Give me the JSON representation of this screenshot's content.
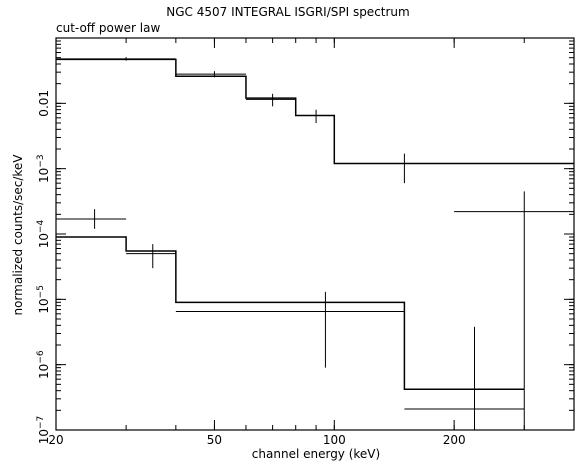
{
  "chart_data": {
    "type": "line",
    "title": "NGC 4507 INTEGRAL ISGRI/SPI spectrum",
    "subtitle": "cut-off power law",
    "xlabel": "channel energy (keV)",
    "ylabel": "normalized counts/sec/keV",
    "x_scale": "log",
    "y_scale": "log",
    "xlim": [
      20,
      400
    ],
    "ylim": [
      1e-07,
      0.1
    ],
    "x_ticks": [
      {
        "value": 20,
        "label": "20"
      },
      {
        "value": 50,
        "label": "50"
      },
      {
        "value": 100,
        "label": "100"
      },
      {
        "value": 200,
        "label": "200"
      }
    ],
    "y_ticks": [
      {
        "value": 1e-07,
        "mantissa": "10",
        "exp": "−7"
      },
      {
        "value": 1e-06,
        "mantissa": "10",
        "exp": "−6"
      },
      {
        "value": 1e-05,
        "mantissa": "10",
        "exp": "−5"
      },
      {
        "value": 0.0001,
        "mantissa": "10",
        "exp": "−4"
      },
      {
        "value": 0.001,
        "mantissa": "10",
        "exp": "−3"
      },
      {
        "value": 0.01,
        "label": "0.01"
      }
    ],
    "series": [
      {
        "model": {
          "bins": [
            [
              20,
              40
            ],
            [
              40,
              60
            ],
            [
              60,
              80
            ],
            [
              80,
              100
            ],
            [
              100,
              200
            ],
            [
              200,
              400
            ]
          ],
          "values": [
            0.047,
            0.026,
            0.012,
            0.0065,
            0.0012,
            0.0012
          ]
        },
        "data": [
          {
            "x": 30,
            "xerr": [
              20,
              40
            ],
            "y": 0.048,
            "yerr": [
              0.045,
              0.051
            ]
          },
          {
            "x": 50,
            "xerr": [
              40,
              60
            ],
            "y": 0.028,
            "yerr": [
              0.025,
              0.031
            ]
          },
          {
            "x": 70,
            "xerr": [
              60,
              80
            ],
            "y": 0.0115,
            "yerr": [
              0.009,
              0.014
            ]
          },
          {
            "x": 90,
            "xerr": [
              80,
              100
            ],
            "y": 0.0065,
            "yerr": [
              0.005,
              0.008
            ]
          },
          {
            "x": 150,
            "xerr": [
              100,
              200
            ],
            "y": 0.0012,
            "yerr": [
              0.0006,
              0.0017
            ]
          },
          {
            "x": 300,
            "xerr": [
              200,
              400
            ],
            "y": 0.00022,
            "yerr": [
              1e-07,
              0.00045
            ]
          }
        ]
      },
      {
        "model": {
          "bins": [
            [
              20,
              30
            ],
            [
              30,
              40
            ],
            [
              40,
              150
            ],
            [
              150,
              300
            ]
          ],
          "values": [
            9e-05,
            5.5e-05,
            9e-06,
            4.2e-07
          ]
        },
        "data": [
          {
            "x": 25,
            "xerr": [
              20,
              30
            ],
            "y": 0.00017,
            "yerr": [
              0.00012,
              0.00024
            ]
          },
          {
            "x": 35,
            "xerr": [
              30,
              40
            ],
            "y": 5e-05,
            "yerr": [
              3e-05,
              7e-05
            ]
          },
          {
            "x": 95,
            "xerr": [
              40,
              150
            ],
            "y": 6.5e-06,
            "yerr": [
              9e-07,
              1.3e-05
            ]
          },
          {
            "x": 225,
            "xerr": [
              150,
              300
            ],
            "y": 2.1e-07,
            "yerr": [
              1e-07,
              3.8e-06
            ]
          }
        ]
      }
    ],
    "grid": false
  }
}
